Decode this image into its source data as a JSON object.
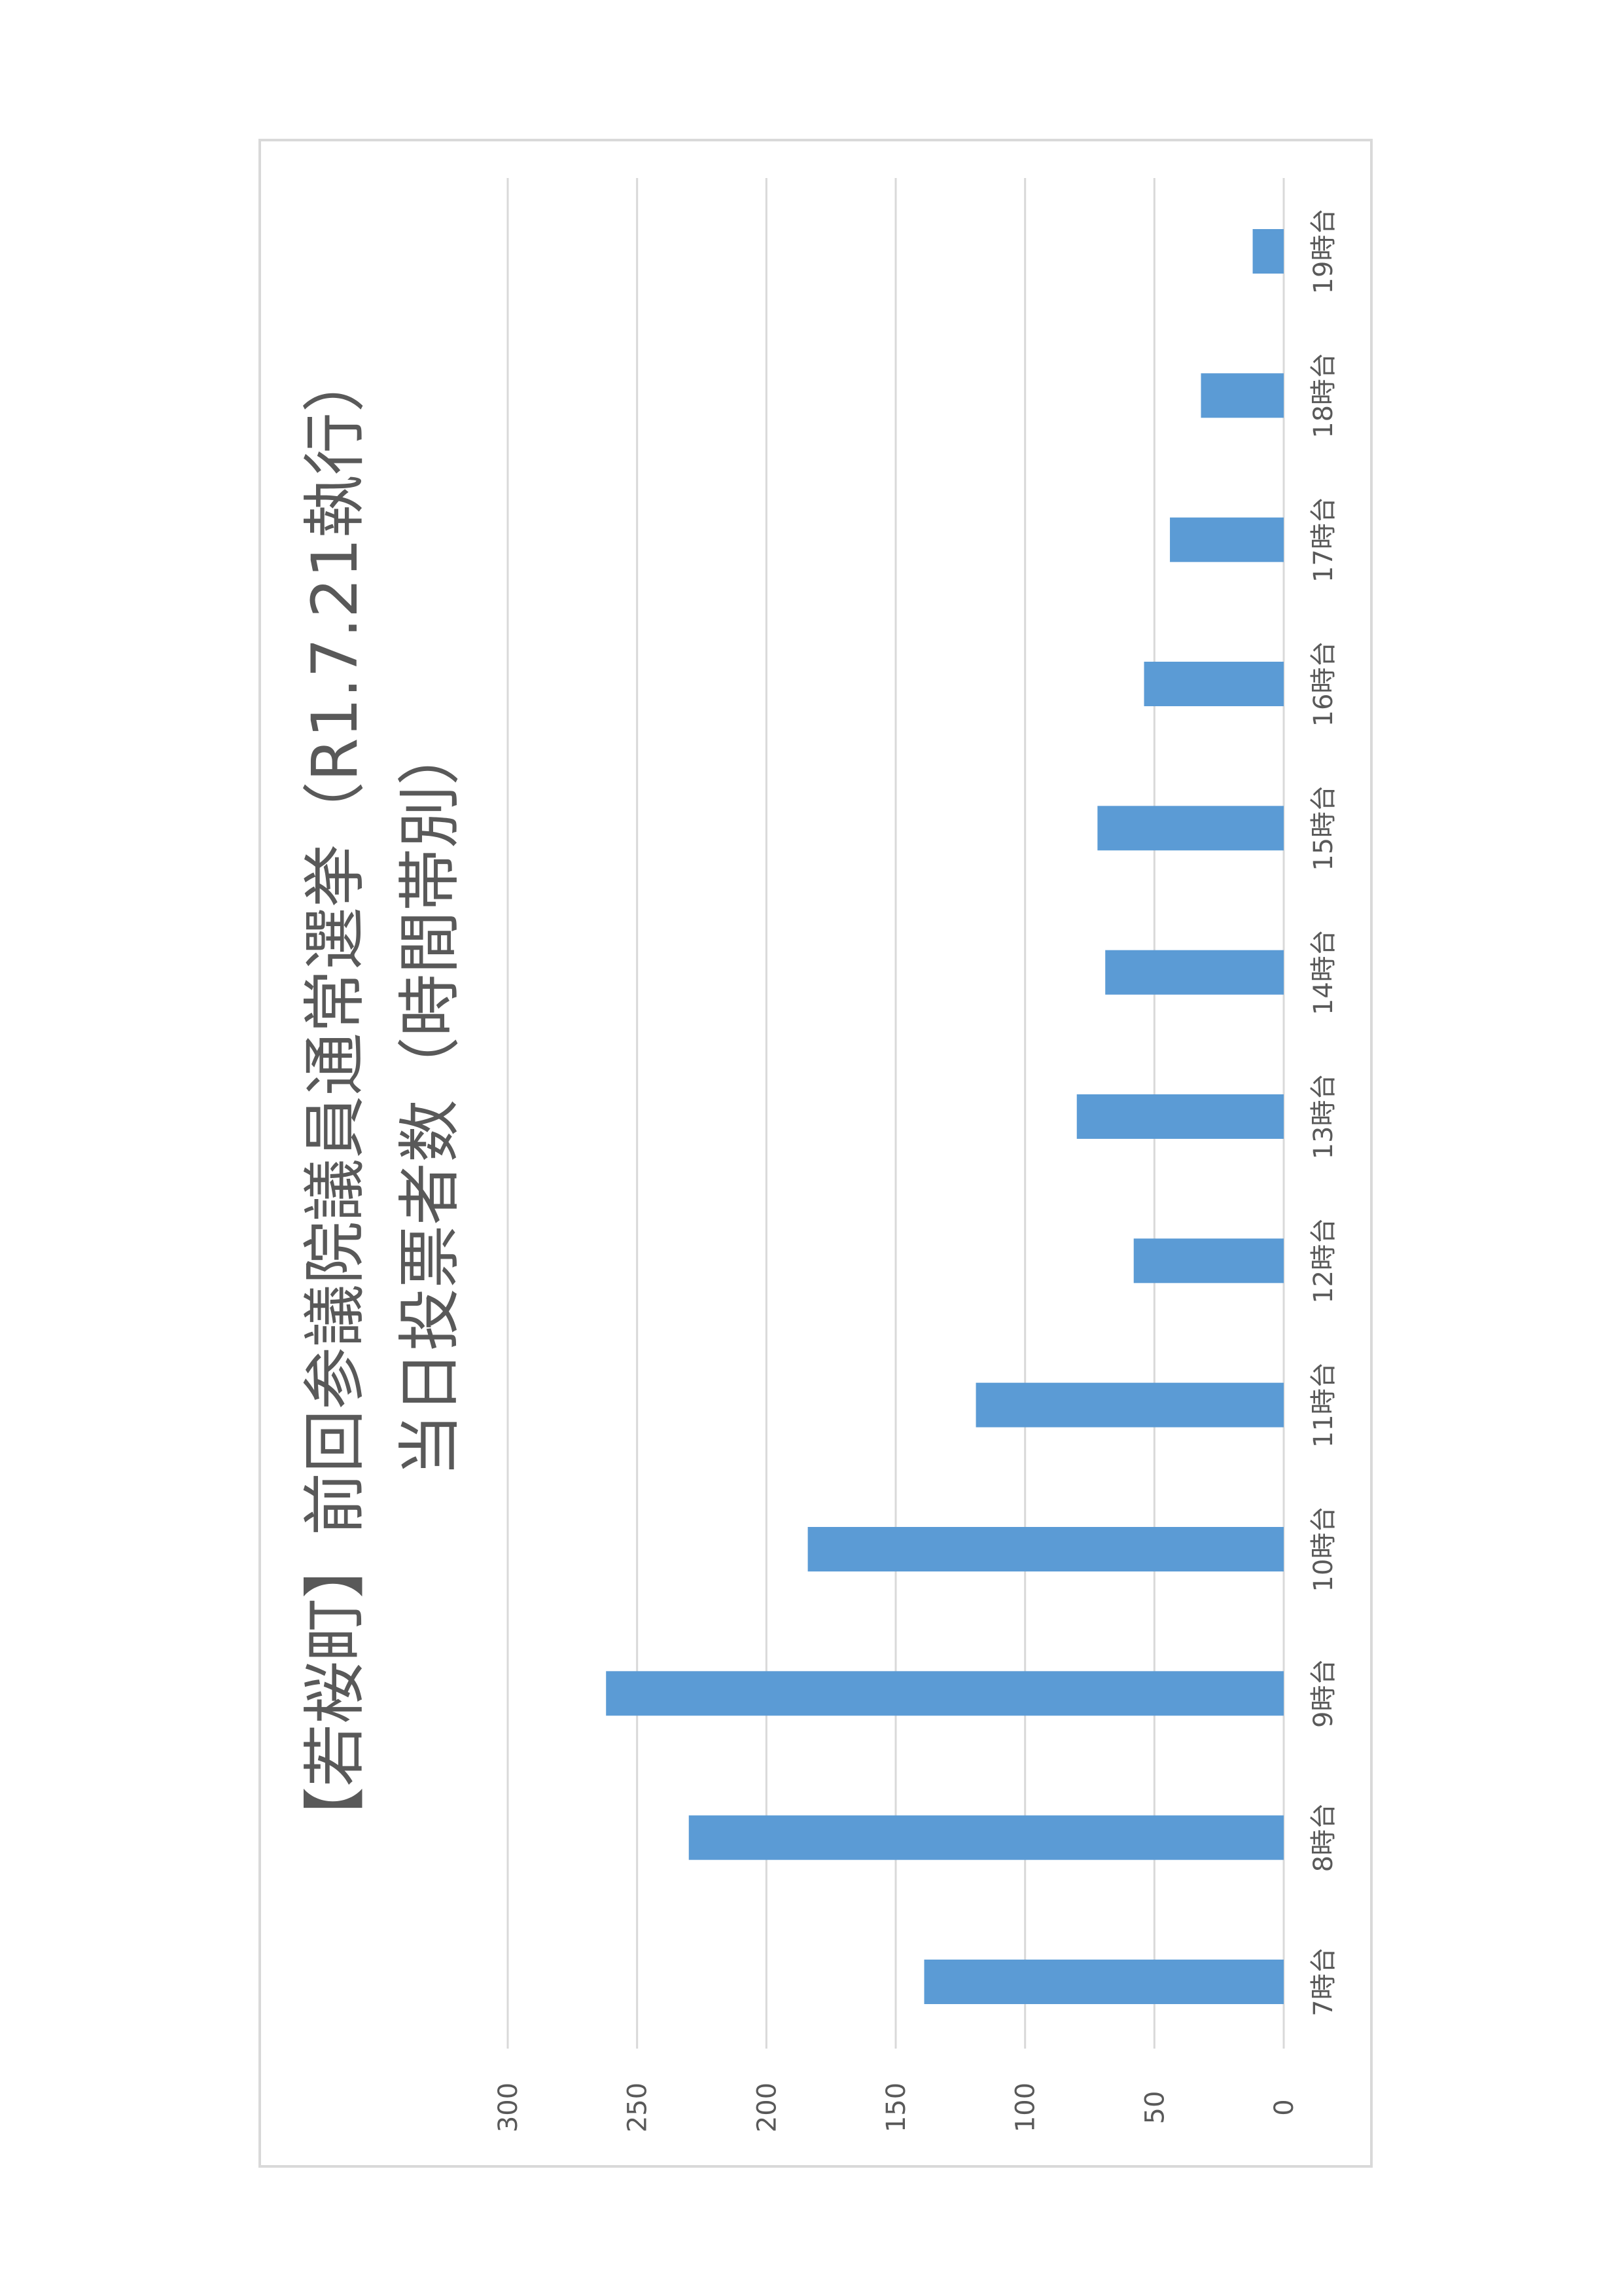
{
  "chart_data": {
    "type": "bar",
    "orientation": "horizontal",
    "title": "【若桜町】前回参議院議員通常選挙（R1.7.21執行）",
    "subtitle": "当日投票者数（時間帯別）",
    "categories": [
      "7時台",
      "8時台",
      "9時台",
      "10時台",
      "11時台",
      "12時台",
      "13時台",
      "14時台",
      "15時台",
      "16時台",
      "17時台",
      "18時台",
      "19時台"
    ],
    "values": [
      139,
      230,
      262,
      184,
      119,
      58,
      80,
      69,
      72,
      54,
      44,
      32,
      12
    ],
    "xlim": [
      0,
      300
    ],
    "xticks": [
      0,
      50,
      100,
      150,
      200,
      250,
      300
    ],
    "grid": true,
    "bar_color": "#5b9bd5",
    "grid_color": "#d9d9d9",
    "text_color": "#595959",
    "rotation": "page rotated 90 degrees counter-clockwise"
  }
}
